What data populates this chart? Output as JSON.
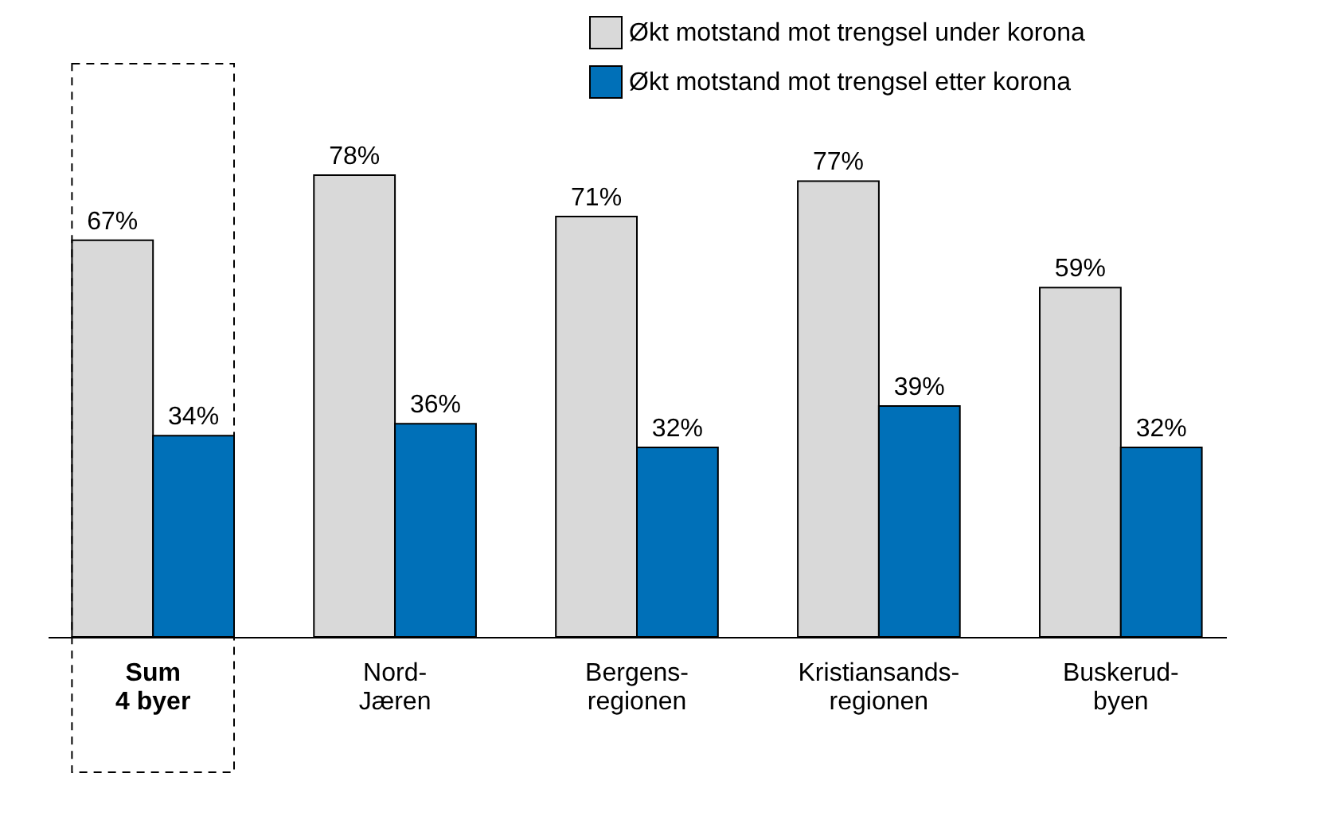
{
  "chart_data": {
    "type": "bar",
    "categories": [
      "Sum\n4 byer",
      "Nord-\nJæren",
      "Bergens-\nregionen",
      "Kristiansands-\nregionen",
      "Buskerud-\nbyen"
    ],
    "series": [
      {
        "name": "Økt motstand mot trengsel under korona",
        "color": "#d9d9d9",
        "values": [
          67,
          78,
          71,
          77,
          59
        ],
        "value_labels": [
          "67%",
          "78%",
          "71%",
          "77%",
          "59%"
        ]
      },
      {
        "name": "Økt motstand mot trengsel etter korona",
        "color": "#0070b8",
        "values": [
          34,
          36,
          32,
          39,
          32
        ],
        "value_labels": [
          "34%",
          "36%",
          "32%",
          "39%",
          "32%"
        ]
      }
    ],
    "legend": "top right",
    "grid": false
  }
}
